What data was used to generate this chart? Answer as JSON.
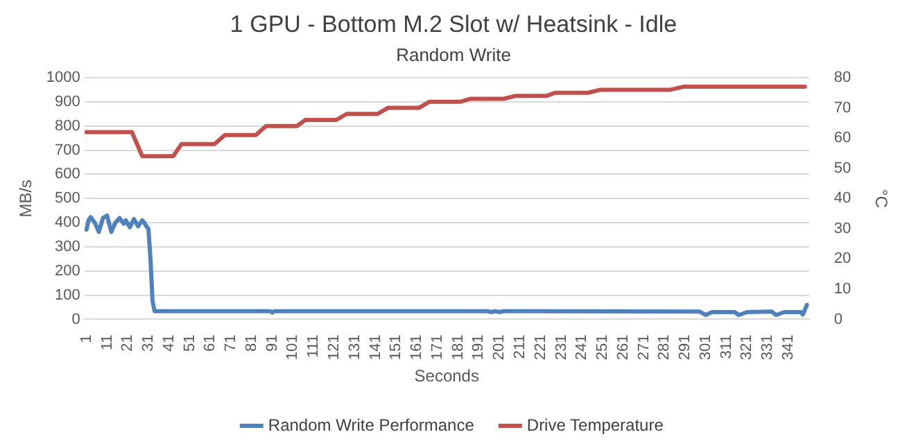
{
  "chart_data": {
    "type": "line",
    "title": "1 GPU - Bottom M.2 Slot w/ Heatsink - Idle",
    "subtitle": "Random Write",
    "xlabel": "Seconds",
    "ylabel": "MB/s",
    "y2label": "°C",
    "xlim": [
      0,
      351
    ],
    "xticks": [
      1,
      11,
      21,
      31,
      41,
      51,
      61,
      71,
      81,
      91,
      101,
      111,
      121,
      131,
      141,
      151,
      161,
      171,
      181,
      191,
      201,
      211,
      221,
      231,
      241,
      251,
      261,
      271,
      281,
      291,
      301,
      311,
      321,
      331,
      341
    ],
    "ylim": [
      0,
      1000
    ],
    "yticks": [
      0,
      100,
      200,
      300,
      400,
      500,
      600,
      700,
      800,
      900,
      1000
    ],
    "y2lim": [
      0,
      80
    ],
    "y2ticks": [
      0,
      10,
      20,
      30,
      40,
      50,
      60,
      70,
      80
    ],
    "grid": "y",
    "legend": "bottom",
    "marker": "none",
    "line_style": "solid",
    "series": [
      {
        "name": "Random Write Performance",
        "color": "#4f81bd",
        "x": [
          1,
          2,
          3,
          5,
          7,
          9,
          11,
          13,
          15,
          17,
          19,
          20,
          22,
          24,
          26,
          28,
          29,
          30,
          31,
          32,
          33,
          34,
          90,
          91,
          92,
          195,
          197,
          199,
          201,
          203,
          205,
          298,
          301,
          304,
          315,
          317,
          321,
          333,
          335,
          339,
          347,
          348,
          350
        ],
        "values": [
          371,
          410,
          423,
          400,
          362,
          420,
          429,
          362,
          400,
          419,
          396,
          410,
          381,
          415,
          385,
          410,
          400,
          385,
          375,
          250,
          76,
          34,
          34,
          28,
          34,
          34,
          30,
          34,
          30,
          34,
          34,
          32,
          18,
          30,
          30,
          18,
          30,
          32,
          18,
          30,
          30,
          20,
          60
        ]
      },
      {
        "name": "Drive Temperature",
        "color": "#c0504d",
        "axis": "y2",
        "x": [
          1,
          23,
          28,
          43,
          47,
          63,
          68,
          83,
          88,
          103,
          107,
          122,
          127,
          142,
          147,
          162,
          167,
          182,
          187,
          203,
          209,
          224,
          228,
          244,
          250,
          284,
          290,
          349
        ],
        "values": [
          62,
          62,
          54,
          54,
          58,
          58,
          61,
          61,
          64,
          64,
          66,
          66,
          68,
          68,
          70,
          70,
          72,
          72,
          73,
          73,
          74,
          74,
          75,
          75,
          76,
          76,
          77,
          77
        ]
      }
    ]
  }
}
